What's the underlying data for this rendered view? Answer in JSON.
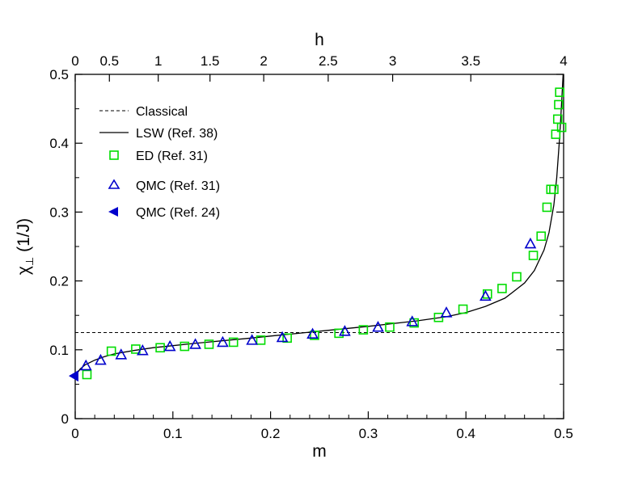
{
  "chart_data": {
    "type": "scatter",
    "xlabel": "m",
    "x2label": "h",
    "ylabel_main": "χ",
    "ylabel_sub": "⊥",
    "ylabel_unit": "(1/J)",
    "xlim": [
      0,
      0.5
    ],
    "ylim": [
      0,
      0.5
    ],
    "x2lim": [
      0,
      4
    ],
    "x_ticks": [
      "0",
      "0.1",
      "0.2",
      "0.3",
      "0.4",
      "0.5"
    ],
    "y_ticks": [
      "0",
      "0.1",
      "0.2",
      "0.3",
      "0.4",
      "0.5"
    ],
    "x2_ticks": [
      {
        "label": "0",
        "m": 0.0
      },
      {
        "label": "0.5",
        "m": 0.035
      },
      {
        "label": "1",
        "m": 0.085
      },
      {
        "label": "1.5",
        "m": 0.138
      },
      {
        "label": "2",
        "m": 0.193
      },
      {
        "label": "2.5",
        "m": 0.259
      },
      {
        "label": "3",
        "m": 0.325
      },
      {
        "label": "3.5",
        "m": 0.405
      },
      {
        "label": "4",
        "m": 0.5
      }
    ],
    "series": [
      {
        "name": "Classical",
        "style": "dashed-line",
        "color": "#000000",
        "points": [
          [
            0,
            0.125
          ],
          [
            0.5,
            0.125
          ]
        ]
      },
      {
        "name": "LSW (Ref. 38)",
        "style": "solid-line",
        "color": "#000000",
        "points": [
          [
            0.0,
            0.062
          ],
          [
            0.005,
            0.072
          ],
          [
            0.01,
            0.078
          ],
          [
            0.02,
            0.085
          ],
          [
            0.03,
            0.09
          ],
          [
            0.04,
            0.094
          ],
          [
            0.06,
            0.099
          ],
          [
            0.08,
            0.103
          ],
          [
            0.1,
            0.106
          ],
          [
            0.12,
            0.109
          ],
          [
            0.15,
            0.113
          ],
          [
            0.18,
            0.117
          ],
          [
            0.2,
            0.12
          ],
          [
            0.25,
            0.127
          ],
          [
            0.3,
            0.134
          ],
          [
            0.35,
            0.142
          ],
          [
            0.38,
            0.148
          ],
          [
            0.4,
            0.154
          ],
          [
            0.42,
            0.163
          ],
          [
            0.44,
            0.175
          ],
          [
            0.46,
            0.197
          ],
          [
            0.47,
            0.215
          ],
          [
            0.48,
            0.245
          ],
          [
            0.485,
            0.27
          ],
          [
            0.49,
            0.31
          ],
          [
            0.493,
            0.35
          ],
          [
            0.496,
            0.41
          ],
          [
            0.498,
            0.46
          ],
          [
            0.4995,
            0.5
          ]
        ]
      },
      {
        "name": "ED (Ref. 31)",
        "style": "open-square",
        "color": "#00dd00",
        "points": [
          [
            0.012,
            0.064
          ],
          [
            0.037,
            0.098
          ],
          [
            0.062,
            0.101
          ],
          [
            0.087,
            0.103
          ],
          [
            0.112,
            0.105
          ],
          [
            0.137,
            0.108
          ],
          [
            0.162,
            0.111
          ],
          [
            0.19,
            0.114
          ],
          [
            0.217,
            0.117
          ],
          [
            0.245,
            0.121
          ],
          [
            0.27,
            0.124
          ],
          [
            0.295,
            0.129
          ],
          [
            0.322,
            0.133
          ],
          [
            0.347,
            0.139
          ],
          [
            0.372,
            0.147
          ],
          [
            0.397,
            0.159
          ],
          [
            0.422,
            0.181
          ],
          [
            0.437,
            0.189
          ],
          [
            0.452,
            0.206
          ],
          [
            0.469,
            0.237
          ],
          [
            0.477,
            0.265
          ],
          [
            0.483,
            0.307
          ],
          [
            0.487,
            0.333
          ],
          [
            0.49,
            0.333
          ],
          [
            0.492,
            0.413
          ],
          [
            0.494,
            0.435
          ],
          [
            0.495,
            0.456
          ],
          [
            0.496,
            0.474
          ],
          [
            0.498,
            0.423
          ]
        ]
      },
      {
        "name": "QMC (Ref. 31)",
        "style": "open-triangle",
        "color": "#0000cc",
        "points": [
          [
            0.011,
            0.077
          ],
          [
            0.026,
            0.085
          ],
          [
            0.047,
            0.093
          ],
          [
            0.069,
            0.099
          ],
          [
            0.097,
            0.105
          ],
          [
            0.123,
            0.108
          ],
          [
            0.151,
            0.111
          ],
          [
            0.181,
            0.114
          ],
          [
            0.212,
            0.118
          ],
          [
            0.243,
            0.123
          ],
          [
            0.276,
            0.127
          ],
          [
            0.31,
            0.133
          ],
          [
            0.345,
            0.141
          ],
          [
            0.38,
            0.154
          ],
          [
            0.42,
            0.178
          ],
          [
            0.466,
            0.254
          ]
        ]
      },
      {
        "name": "QMC (Ref. 24)",
        "style": "filled-triangle-left",
        "color": "#0000cc",
        "points": [
          [
            0.0,
            0.062
          ]
        ]
      }
    ]
  }
}
